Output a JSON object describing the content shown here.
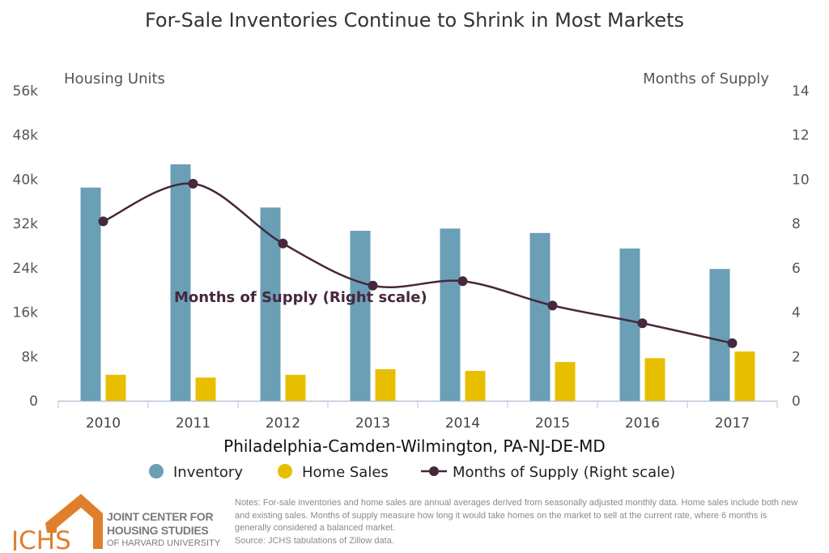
{
  "chart_data": {
    "type": "bar",
    "title": "For-Sale Inventories Continue to Shrink in Most Markets",
    "xlabel": "Philadelphia-Camden-Wilmington, PA-NJ-DE-MD",
    "ylabel": "Housing Units",
    "y2label": "Months of Supply",
    "categories": [
      "2010",
      "2011",
      "2012",
      "2013",
      "2014",
      "2015",
      "2016",
      "2017"
    ],
    "ylim": [
      0,
      56000
    ],
    "yticks": [
      "0",
      "8k",
      "16k",
      "24k",
      "32k",
      "40k",
      "48k",
      "56k"
    ],
    "y2lim": [
      0,
      14
    ],
    "y2ticks": [
      "0",
      "2",
      "4",
      "6",
      "8",
      "10",
      "12",
      "14"
    ],
    "grid": false,
    "legend_position": "bottom",
    "series": [
      {
        "name": "Inventory",
        "type": "bar",
        "axis": "left",
        "color": "#6a9fb5",
        "values": [
          38500,
          42700,
          34900,
          30700,
          31100,
          30300,
          27500,
          23800
        ]
      },
      {
        "name": "Home Sales",
        "type": "bar",
        "axis": "left",
        "color": "#e8bf00",
        "values": [
          4700,
          4200,
          4700,
          5700,
          5400,
          7000,
          7700,
          8900
        ]
      },
      {
        "name": "Months of Supply (Right scale)",
        "type": "line",
        "axis": "right",
        "color": "#45283c",
        "values": [
          8.1,
          9.8,
          7.1,
          5.2,
          5.4,
          4.3,
          3.5,
          2.6
        ]
      }
    ],
    "annotations": [
      "Months of Supply (Right scale)"
    ]
  },
  "footer": {
    "logo_text": "JCHS",
    "org_line1": "JOINT CENTER FOR",
    "org_line2": "HOUSING STUDIES",
    "org_line3": "OF HARVARD UNIVERSITY",
    "notes": "Notes: For-sale inventories and home sales are annual averages derived from seasonally adjusted monthly data. Home sales include both new and existing sales. Months of supply measure how long it would take homes on the market to sell at the current rate, where 6 months is generally considered a balanced market.",
    "source": "Source: JCHS tabulations of Zillow data."
  }
}
